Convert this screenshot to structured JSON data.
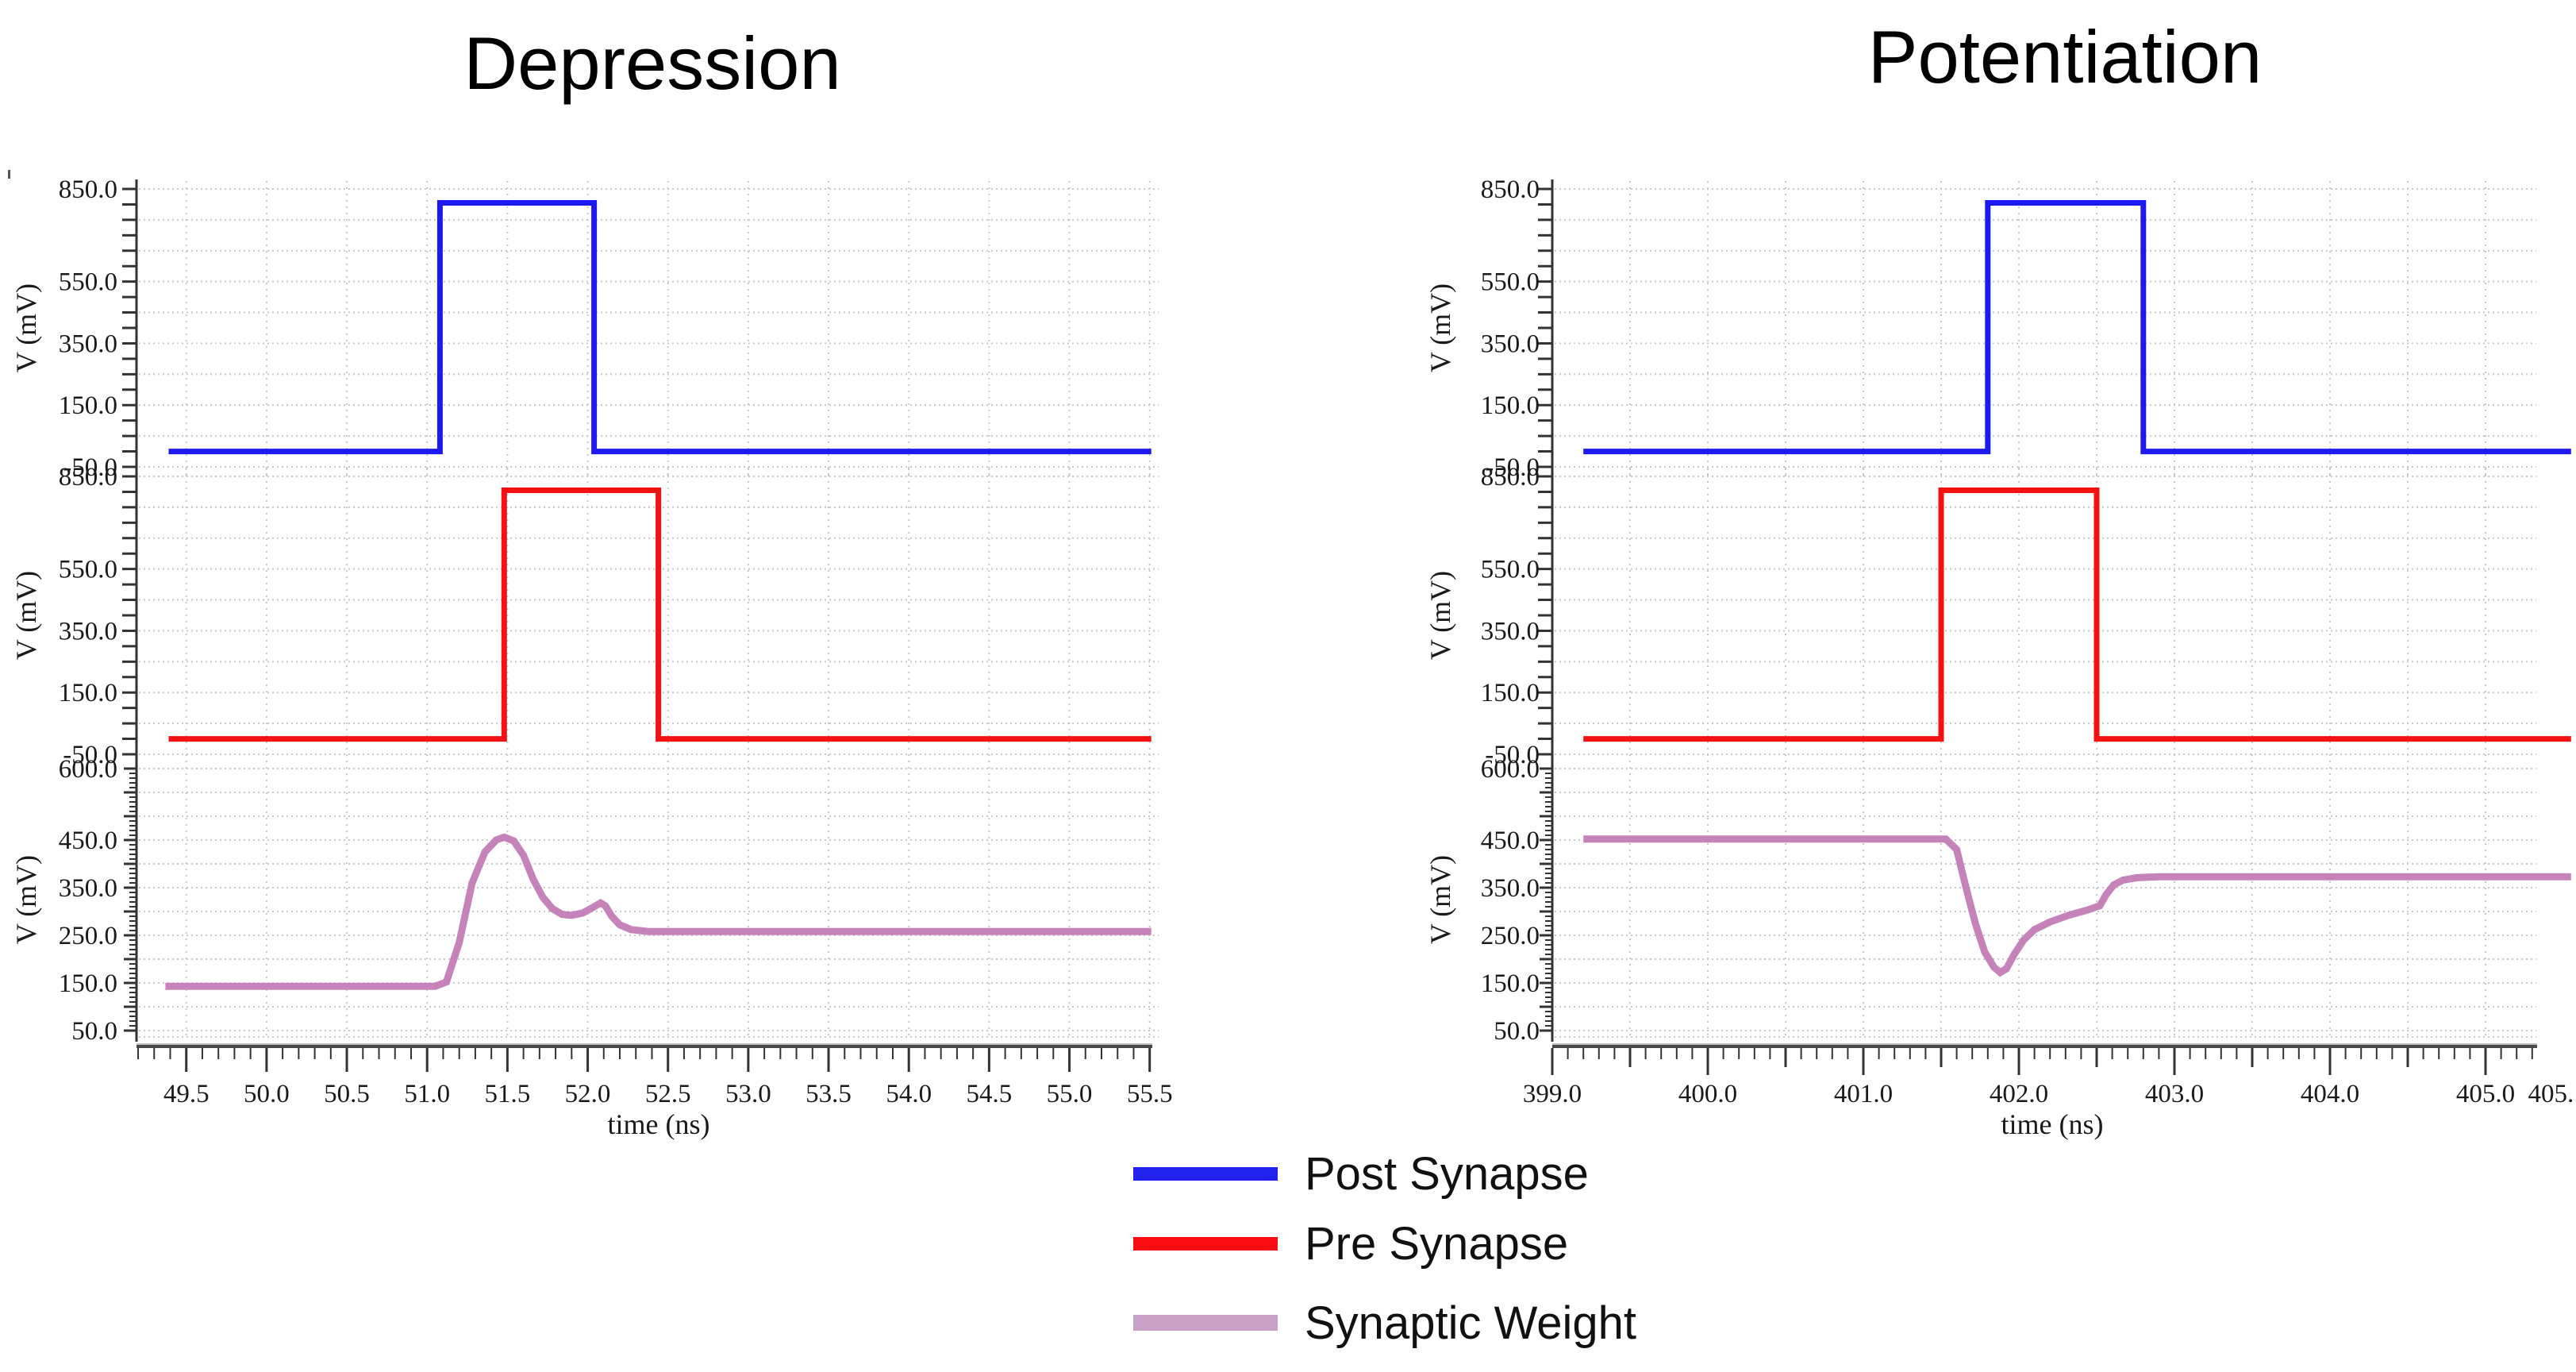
{
  "page": {
    "background": "#ffffff"
  },
  "legend": {
    "items": [
      {
        "label": "Post Synapse",
        "color": "#2222ee"
      },
      {
        "label": "Pre Synapse",
        "color": "#f70d12"
      },
      {
        "label": "Synaptic Weight",
        "color": "#c9a0c6"
      }
    ]
  },
  "chart_data": {
    "type": "line",
    "description": "Two columns of three stacked voltage-vs-time waveforms (spiking neural network STDP simulation).",
    "grid": "dotted, on",
    "colors": {
      "post_synapse": "#1d1af0",
      "pre_synapse": "#f41111",
      "synaptic_weight": "#c583ba"
    },
    "columns": [
      {
        "title": "Depression",
        "x_axis_title": "time (ns)",
        "x_unit": "ns",
        "x_start": 49.19,
        "x_grid_start": 49.5,
        "x_grid_end": 55.5,
        "x_grid_step": 0.5,
        "x_labels": [
          {
            "v": 49.5,
            "t": "49.5"
          },
          {
            "v": 50.0,
            "t": "50.0"
          },
          {
            "v": 50.5,
            "t": "50.5"
          },
          {
            "v": 51.0,
            "t": "51.0"
          },
          {
            "v": 51.5,
            "t": "51.5"
          },
          {
            "v": 52.0,
            "t": "52.0"
          },
          {
            "v": 52.5,
            "t": "52.5"
          },
          {
            "v": 53.0,
            "t": "53.0"
          },
          {
            "v": 53.5,
            "t": "53.5"
          },
          {
            "v": 54.0,
            "t": "54.0"
          },
          {
            "v": 54.5,
            "t": "54.5"
          },
          {
            "v": 55.0,
            "t": "55.0"
          },
          {
            "v": 55.5,
            "t": "55.5"
          }
        ],
        "plots": [
          {
            "name": "Post Synapse",
            "y_axis_title": "V (mV)",
            "y_top": 850,
            "y_bottom": -50,
            "y_grid_step": 100,
            "y_ruler": "normal",
            "extra_bottom_row": false,
            "y_labels": [
              {
                "v": 850,
                "t": "850.0"
              },
              {
                "v": 550,
                "t": "550.0"
              },
              {
                "v": 350,
                "t": "350.0"
              },
              {
                "v": 150,
                "t": "150.0"
              },
              {
                "v": -50,
                "t": "-50.0"
              }
            ],
            "series": [
              {
                "name": "Post Synapse",
                "color": "#1d1af0",
                "width": 7,
                "points": [
                  [
                    49.39,
                    0
                  ],
                  [
                    51.08,
                    0
                  ],
                  [
                    51.08,
                    805
                  ],
                  [
                    52.04,
                    805
                  ],
                  [
                    52.04,
                    0
                  ],
                  [
                    55.51,
                    0
                  ]
                ]
              }
            ]
          },
          {
            "name": "Pre Synapse",
            "y_axis_title": "V (mV)",
            "y_top": 850,
            "y_bottom": -50,
            "y_grid_step": 100,
            "y_ruler": "normal",
            "extra_bottom_row": false,
            "y_labels": [
              {
                "v": 850,
                "t": "850.0"
              },
              {
                "v": 550,
                "t": "550.0"
              },
              {
                "v": 350,
                "t": "350.0"
              },
              {
                "v": 150,
                "t": "150.0"
              },
              {
                "v": -50,
                "t": "-50.0"
              }
            ],
            "series": [
              {
                "name": "Pre Synapse",
                "color": "#f41111",
                "width": 7,
                "points": [
                  [
                    49.39,
                    0
                  ],
                  [
                    51.48,
                    0
                  ],
                  [
                    51.48,
                    805
                  ],
                  [
                    52.44,
                    805
                  ],
                  [
                    52.44,
                    0
                  ],
                  [
                    55.51,
                    0
                  ]
                ]
              }
            ]
          },
          {
            "name": "Synaptic Weight",
            "y_axis_title": "V (mV)",
            "y_top": 600,
            "y_bottom": 50,
            "y_grid_step": 50,
            "y_ruler": "dense",
            "extra_bottom_row": true,
            "y_labels": [
              {
                "v": 600,
                "t": "600.0"
              },
              {
                "v": 450,
                "t": "450.0"
              },
              {
                "v": 350,
                "t": "350.0"
              },
              {
                "v": 250,
                "t": "250.0"
              },
              {
                "v": 150,
                "t": "150.0"
              },
              {
                "v": 50,
                "t": "50.0"
              }
            ],
            "series": [
              {
                "name": "Synaptic Weight",
                "color": "#c583ba",
                "width": 9,
                "points": [
                  [
                    49.37,
                    143
                  ],
                  [
                    51.05,
                    143
                  ],
                  [
                    51.12,
                    152
                  ],
                  [
                    51.2,
                    235
                  ],
                  [
                    51.28,
                    360
                  ],
                  [
                    51.36,
                    425
                  ],
                  [
                    51.43,
                    450
                  ],
                  [
                    51.48,
                    456
                  ],
                  [
                    51.54,
                    448
                  ],
                  [
                    51.6,
                    418
                  ],
                  [
                    51.66,
                    368
                  ],
                  [
                    51.72,
                    330
                  ],
                  [
                    51.78,
                    306
                  ],
                  [
                    51.84,
                    294
                  ],
                  [
                    51.9,
                    292
                  ],
                  [
                    51.97,
                    297
                  ],
                  [
                    52.03,
                    308
                  ],
                  [
                    52.08,
                    318
                  ],
                  [
                    52.11,
                    312
                  ],
                  [
                    52.15,
                    290
                  ],
                  [
                    52.2,
                    272
                  ],
                  [
                    52.27,
                    262
                  ],
                  [
                    52.38,
                    258
                  ],
                  [
                    55.51,
                    258
                  ]
                ]
              }
            ]
          }
        ]
      },
      {
        "title": "Potentiation",
        "x_axis_title": "time (ns)",
        "x_unit": "ns",
        "x_start": 399.0,
        "x_grid_start": 399.5,
        "x_grid_end": 405.0,
        "x_grid_step": 0.5,
        "x_labels": [
          {
            "v": 399.0,
            "t": "399.0"
          },
          {
            "v": 400.0,
            "t": "400.0"
          },
          {
            "v": 401.0,
            "t": "401.0"
          },
          {
            "v": 402.0,
            "t": "402.0"
          },
          {
            "v": 403.0,
            "t": "403.0"
          },
          {
            "v": 404.0,
            "t": "404.0"
          },
          {
            "v": 405.0,
            "t": "405.0"
          },
          {
            "v": 405.42,
            "t": "405."
          }
        ],
        "plots": [
          {
            "name": "Post Synapse",
            "y_axis_title": "V (mV)",
            "y_top": 850,
            "y_bottom": -50,
            "y_grid_step": 100,
            "y_ruler": "normal",
            "extra_bottom_row": false,
            "y_labels": [
              {
                "v": 850,
                "t": "850.0"
              },
              {
                "v": 550,
                "t": "550.0"
              },
              {
                "v": 350,
                "t": "350.0"
              },
              {
                "v": 150,
                "t": "150.0"
              },
              {
                "v": -50,
                "t": "-50.0"
              }
            ],
            "series": [
              {
                "name": "Post Synapse",
                "color": "#1d1af0",
                "width": 7,
                "points": [
                  [
                    399.2,
                    0
                  ],
                  [
                    401.8,
                    0
                  ],
                  [
                    401.8,
                    805
                  ],
                  [
                    402.8,
                    805
                  ],
                  [
                    402.8,
                    0
                  ],
                  [
                    405.55,
                    0
                  ]
                ]
              }
            ]
          },
          {
            "name": "Pre Synapse",
            "y_axis_title": "V (mV)",
            "y_top": 850,
            "y_bottom": -50,
            "y_grid_step": 100,
            "y_ruler": "normal",
            "extra_bottom_row": false,
            "y_labels": [
              {
                "v": 850,
                "t": "850.0"
              },
              {
                "v": 550,
                "t": "550.0"
              },
              {
                "v": 350,
                "t": "350.0"
              },
              {
                "v": 150,
                "t": "150.0"
              },
              {
                "v": -50,
                "t": "-50.0"
              }
            ],
            "series": [
              {
                "name": "Pre Synapse",
                "color": "#f41111",
                "width": 7,
                "points": [
                  [
                    399.2,
                    0
                  ],
                  [
                    401.5,
                    0
                  ],
                  [
                    401.5,
                    805
                  ],
                  [
                    402.5,
                    805
                  ],
                  [
                    402.5,
                    0
                  ],
                  [
                    405.55,
                    0
                  ]
                ]
              }
            ]
          },
          {
            "name": "Synaptic Weight",
            "y_axis_title": "V (mV)",
            "y_top": 600,
            "y_bottom": 50,
            "y_grid_step": 50,
            "y_ruler": "dense",
            "extra_bottom_row": true,
            "y_labels": [
              {
                "v": 600,
                "t": "600.0"
              },
              {
                "v": 450,
                "t": "450.0"
              },
              {
                "v": 350,
                "t": "350.0"
              },
              {
                "v": 250,
                "t": "250.0"
              },
              {
                "v": 150,
                "t": "150.0"
              },
              {
                "v": 50,
                "t": "50.0"
              }
            ],
            "series": [
              {
                "name": "Synaptic Weight",
                "color": "#c583ba",
                "width": 9,
                "points": [
                  [
                    399.2,
                    452
                  ],
                  [
                    401.53,
                    452
                  ],
                  [
                    401.6,
                    430
                  ],
                  [
                    401.66,
                    350
                  ],
                  [
                    401.72,
                    275
                  ],
                  [
                    401.78,
                    215
                  ],
                  [
                    401.84,
                    183
                  ],
                  [
                    401.88,
                    172
                  ],
                  [
                    401.92,
                    180
                  ],
                  [
                    401.97,
                    210
                  ],
                  [
                    402.03,
                    240
                  ],
                  [
                    402.1,
                    262
                  ],
                  [
                    402.2,
                    278
                  ],
                  [
                    402.32,
                    292
                  ],
                  [
                    402.44,
                    303
                  ],
                  [
                    402.52,
                    312
                  ],
                  [
                    402.56,
                    335
                  ],
                  [
                    402.61,
                    356
                  ],
                  [
                    402.67,
                    366
                  ],
                  [
                    402.76,
                    371
                  ],
                  [
                    402.9,
                    373
                  ],
                  [
                    405.55,
                    373
                  ]
                ]
              }
            ]
          }
        ]
      }
    ]
  }
}
